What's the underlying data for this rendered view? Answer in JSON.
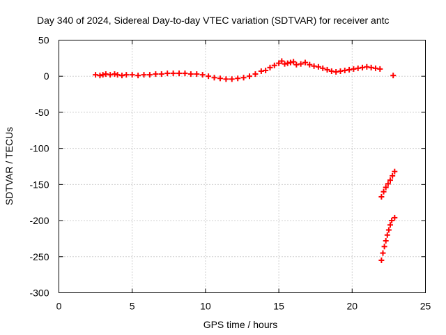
{
  "chart_data": {
    "type": "scatter",
    "title": "Day 340 of 2024, Sidereal Day-to-day VTEC variation (SDTVAR) for receiver antc",
    "xlabel": "GPS time / hours",
    "ylabel": "SDTVAR / TECUs",
    "xlim": [
      0,
      25
    ],
    "ylim": [
      -300,
      50
    ],
    "xticks": [
      0,
      5,
      10,
      15,
      20,
      25
    ],
    "yticks": [
      50,
      0,
      -50,
      -100,
      -150,
      -200,
      -250,
      -300
    ],
    "grid": true,
    "marker": "+",
    "marker_color": "#ff0000",
    "series": [
      {
        "points": [
          [
            2.5,
            2
          ],
          [
            2.8,
            1
          ],
          [
            3.0,
            2
          ],
          [
            3.2,
            3
          ],
          [
            3.5,
            2
          ],
          [
            3.8,
            3
          ],
          [
            4.0,
            2
          ],
          [
            4.3,
            1
          ],
          [
            4.6,
            2
          ],
          [
            5.0,
            2
          ],
          [
            5.4,
            1
          ],
          [
            5.8,
            2
          ],
          [
            6.2,
            2
          ],
          [
            6.6,
            3
          ],
          [
            7.0,
            3
          ],
          [
            7.4,
            4
          ],
          [
            7.8,
            4
          ],
          [
            8.2,
            4
          ],
          [
            8.6,
            4
          ],
          [
            9.0,
            3
          ],
          [
            9.4,
            3
          ],
          [
            9.8,
            2
          ],
          [
            10.2,
            0
          ],
          [
            10.6,
            -2
          ],
          [
            11.0,
            -3
          ],
          [
            11.4,
            -4
          ],
          [
            11.8,
            -4
          ],
          [
            12.2,
            -3
          ],
          [
            12.6,
            -2
          ],
          [
            13.0,
            0
          ],
          [
            13.4,
            3
          ],
          [
            13.8,
            7
          ],
          [
            14.1,
            8
          ],
          [
            14.4,
            12
          ],
          [
            14.7,
            15
          ],
          [
            15.0,
            18
          ],
          [
            15.2,
            21
          ],
          [
            15.4,
            17
          ],
          [
            15.6,
            18
          ],
          [
            15.8,
            19
          ],
          [
            16.0,
            20
          ],
          [
            16.2,
            16
          ],
          [
            16.5,
            17
          ],
          [
            16.8,
            19
          ],
          [
            17.1,
            16
          ],
          [
            17.4,
            14
          ],
          [
            17.7,
            13
          ],
          [
            18.0,
            11
          ],
          [
            18.3,
            9
          ],
          [
            18.6,
            7
          ],
          [
            18.9,
            6
          ],
          [
            19.2,
            7
          ],
          [
            19.5,
            8
          ],
          [
            19.8,
            9
          ],
          [
            20.1,
            10
          ],
          [
            20.4,
            11
          ],
          [
            20.7,
            12
          ],
          [
            21.0,
            13
          ],
          [
            21.3,
            12
          ],
          [
            21.6,
            11
          ],
          [
            21.9,
            10
          ],
          [
            22.8,
            1
          ],
          [
            22.0,
            -167
          ],
          [
            22.15,
            -160
          ],
          [
            22.3,
            -154
          ],
          [
            22.45,
            -149
          ],
          [
            22.6,
            -144
          ],
          [
            22.75,
            -138
          ],
          [
            22.9,
            -132
          ],
          [
            22.0,
            -255
          ],
          [
            22.1,
            -245
          ],
          [
            22.2,
            -236
          ],
          [
            22.3,
            -228
          ],
          [
            22.4,
            -220
          ],
          [
            22.5,
            -213
          ],
          [
            22.6,
            -206
          ],
          [
            22.7,
            -200
          ],
          [
            22.9,
            -196
          ]
        ]
      }
    ]
  }
}
